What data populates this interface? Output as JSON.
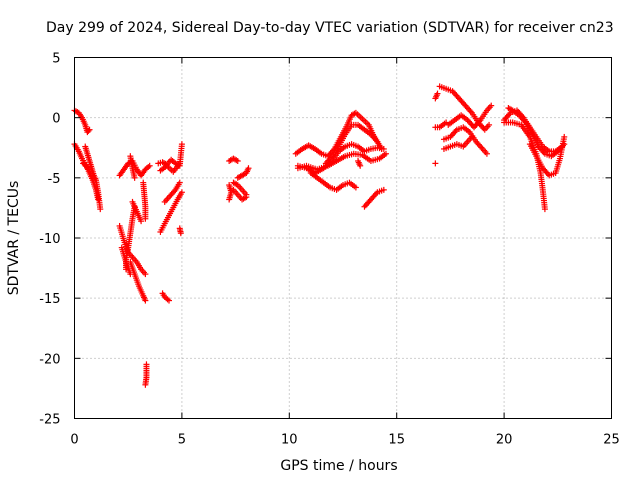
{
  "chart_data": {
    "type": "scatter",
    "title": "Day 299 of 2024, Sidereal Day-to-day VTEC variation (SDTVAR) for receiver cn23",
    "xlabel": "GPS time / hours",
    "ylabel": "SDTVAR / TECUs",
    "xlim": [
      0,
      25
    ],
    "ylim": [
      -25,
      5
    ],
    "xticks": [
      0,
      5,
      10,
      15,
      20,
      25
    ],
    "yticks": [
      -25,
      -20,
      -15,
      -10,
      -5,
      0,
      5
    ],
    "grid": true,
    "marker": "+",
    "color": "#ff0000",
    "series": [
      {
        "name": "SDTVAR",
        "segments": [
          [
            [
              0.0,
              0.6
            ],
            [
              0.2,
              0.4
            ],
            [
              0.35,
              0.0
            ],
            [
              0.5,
              -0.6
            ],
            [
              0.6,
              -1.2
            ],
            [
              0.7,
              -1.0
            ]
          ],
          [
            [
              0.0,
              -2.2
            ],
            [
              0.2,
              -2.8
            ],
            [
              0.35,
              -3.4
            ],
            [
              0.5,
              -3.9
            ],
            [
              0.6,
              -4.2
            ]
          ],
          [
            [
              0.5,
              -2.4
            ],
            [
              0.6,
              -3.0
            ],
            [
              0.7,
              -3.6
            ],
            [
              0.8,
              -4.2
            ],
            [
              0.9,
              -4.8
            ],
            [
              1.0,
              -5.2
            ],
            [
              1.1,
              -6.2
            ],
            [
              1.2,
              -7.6
            ]
          ],
          [
            [
              0.4,
              -3.8
            ],
            [
              0.55,
              -4.0
            ],
            [
              0.7,
              -4.6
            ],
            [
              0.85,
              -5.2
            ],
            [
              1.0,
              -6.0
            ],
            [
              1.1,
              -6.8
            ]
          ],
          [
            [
              2.1,
              -4.8
            ],
            [
              2.3,
              -4.3
            ],
            [
              2.5,
              -3.8
            ],
            [
              2.7,
              -3.6
            ],
            [
              2.9,
              -4.3
            ],
            [
              3.1,
              -4.8
            ],
            [
              3.3,
              -4.3
            ],
            [
              3.5,
              -4.0
            ]
          ],
          [
            [
              2.6,
              -3.2
            ],
            [
              2.7,
              -4.2
            ],
            [
              2.8,
              -5.0
            ]
          ],
          [
            [
              2.7,
              -7.0
            ],
            [
              2.9,
              -7.8
            ],
            [
              3.1,
              -8.6
            ]
          ],
          [
            [
              3.2,
              -5.4
            ],
            [
              3.25,
              -6.4
            ],
            [
              3.3,
              -7.4
            ],
            [
              3.3,
              -8.4
            ]
          ],
          [
            [
              2.8,
              -7.4
            ],
            [
              2.7,
              -8.4
            ],
            [
              2.6,
              -9.6
            ],
            [
              2.5,
              -10.8
            ],
            [
              2.4,
              -11.8
            ],
            [
              2.4,
              -12.6
            ]
          ],
          [
            [
              2.1,
              -9.0
            ],
            [
              2.3,
              -10.2
            ],
            [
              2.5,
              -11.2
            ],
            [
              2.7,
              -11.6
            ],
            [
              2.9,
              -12.0
            ],
            [
              3.1,
              -12.6
            ],
            [
              3.3,
              -13.0
            ]
          ],
          [
            [
              2.6,
              -12.0
            ],
            [
              2.8,
              -13.0
            ],
            [
              3.0,
              -14.0
            ],
            [
              3.2,
              -14.8
            ],
            [
              3.3,
              -15.2
            ]
          ],
          [
            [
              2.2,
              -10.8
            ],
            [
              2.4,
              -12.0
            ],
            [
              2.6,
              -13.0
            ]
          ],
          [
            [
              3.35,
              -20.5
            ],
            [
              3.35,
              -21.0
            ],
            [
              3.35,
              -21.6
            ],
            [
              3.3,
              -22.2
            ]
          ],
          [
            [
              3.9,
              -3.8
            ],
            [
              4.1,
              -3.7
            ],
            [
              4.3,
              -3.9
            ],
            [
              4.5,
              -3.5
            ],
            [
              4.7,
              -3.8
            ],
            [
              4.9,
              -4.0
            ],
            [
              5.0,
              -2.2
            ]
          ],
          [
            [
              4.0,
              -4.4
            ],
            [
              4.3,
              -4.0
            ],
            [
              4.6,
              -4.5
            ],
            [
              4.9,
              -3.8
            ]
          ],
          [
            [
              4.2,
              -7.0
            ],
            [
              4.4,
              -6.6
            ],
            [
              4.7,
              -6.0
            ],
            [
              4.9,
              -5.4
            ]
          ],
          [
            [
              4.0,
              -9.5
            ],
            [
              4.2,
              -8.8
            ],
            [
              4.5,
              -7.8
            ],
            [
              4.8,
              -6.8
            ],
            [
              5.0,
              -6.2
            ]
          ],
          [
            [
              4.9,
              -9.2
            ],
            [
              4.95,
              -9.6
            ]
          ],
          [
            [
              4.1,
              -14.6
            ],
            [
              4.2,
              -14.9
            ],
            [
              4.4,
              -15.2
            ]
          ],
          [
            [
              7.2,
              -3.6
            ],
            [
              7.4,
              -3.4
            ],
            [
              7.6,
              -3.6
            ]
          ],
          [
            [
              7.2,
              -5.6
            ],
            [
              7.3,
              -6.2
            ],
            [
              7.2,
              -6.8
            ]
          ],
          [
            [
              7.4,
              -5.4
            ],
            [
              7.6,
              -5.6
            ],
            [
              7.8,
              -6.0
            ],
            [
              8.0,
              -6.4
            ]
          ],
          [
            [
              7.4,
              -6.0
            ],
            [
              7.6,
              -6.4
            ],
            [
              7.8,
              -6.8
            ],
            [
              8.0,
              -6.6
            ]
          ],
          [
            [
              7.6,
              -5.0
            ],
            [
              7.8,
              -4.8
            ],
            [
              8.0,
              -4.6
            ],
            [
              8.1,
              -4.2
            ]
          ],
          [
            [
              10.3,
              -3.0
            ],
            [
              10.6,
              -2.6
            ],
            [
              10.9,
              -2.3
            ],
            [
              11.2,
              -2.6
            ],
            [
              11.5,
              -3.0
            ],
            [
              11.8,
              -3.2
            ],
            [
              12.1,
              -2.6
            ],
            [
              12.4,
              -1.6
            ],
            [
              12.7,
              -0.6
            ],
            [
              12.9,
              0.2
            ],
            [
              13.1,
              0.4
            ],
            [
              13.4,
              -0.1
            ],
            [
              13.7,
              -0.6
            ],
            [
              13.9,
              -1.4
            ],
            [
              14.1,
              -2.0
            ],
            [
              14.3,
              -2.6
            ]
          ],
          [
            [
              10.4,
              -4.0
            ],
            [
              10.8,
              -4.2
            ],
            [
              11.2,
              -4.6
            ],
            [
              11.6,
              -4.2
            ],
            [
              12.0,
              -3.6
            ],
            [
              12.3,
              -2.8
            ],
            [
              12.6,
              -2.4
            ],
            [
              12.9,
              -2.2
            ],
            [
              13.2,
              -2.4
            ],
            [
              13.5,
              -2.8
            ],
            [
              13.8,
              -2.6
            ],
            [
              14.1,
              -2.5
            ],
            [
              14.4,
              -2.6
            ]
          ],
          [
            [
              10.4,
              -4.2
            ],
            [
              10.8,
              -4.0
            ],
            [
              11.3,
              -4.3
            ],
            [
              11.8,
              -4.0
            ],
            [
              12.2,
              -3.6
            ],
            [
              12.6,
              -3.2
            ],
            [
              13.0,
              -3.0
            ],
            [
              13.4,
              -3.1
            ],
            [
              13.8,
              -3.6
            ],
            [
              14.2,
              -3.4
            ],
            [
              14.5,
              -3.0
            ]
          ],
          [
            [
              11.0,
              -4.6
            ],
            [
              11.3,
              -5.0
            ],
            [
              11.6,
              -5.4
            ],
            [
              11.9,
              -5.8
            ],
            [
              12.2,
              -6.0
            ],
            [
              12.5,
              -5.6
            ],
            [
              12.8,
              -5.4
            ],
            [
              13.1,
              -5.8
            ]
          ],
          [
            [
              11.7,
              -3.8
            ],
            [
              12.0,
              -3.2
            ],
            [
              12.3,
              -2.4
            ],
            [
              12.6,
              -1.4
            ],
            [
              12.9,
              -0.6
            ],
            [
              13.2,
              -0.6
            ],
            [
              13.5,
              -1.0
            ],
            [
              13.8,
              -1.4
            ],
            [
              14.1,
              -2.0
            ]
          ],
          [
            [
              13.5,
              -7.4
            ],
            [
              13.8,
              -6.8
            ],
            [
              14.1,
              -6.2
            ],
            [
              14.4,
              -6.0
            ]
          ],
          [
            [
              13.2,
              -3.6
            ],
            [
              13.3,
              -4.0
            ]
          ],
          [
            [
              16.8,
              1.6
            ],
            [
              16.9,
              2.0
            ]
          ],
          [
            [
              17.0,
              2.6
            ],
            [
              17.3,
              2.4
            ],
            [
              17.6,
              2.2
            ],
            [
              17.9,
              1.6
            ],
            [
              18.2,
              1.0
            ],
            [
              18.5,
              0.4
            ],
            [
              18.8,
              -0.4
            ],
            [
              19.1,
              -1.0
            ],
            [
              19.3,
              -0.6
            ]
          ],
          [
            [
              17.4,
              -0.6
            ],
            [
              17.7,
              -0.2
            ],
            [
              18.0,
              0.2
            ],
            [
              18.3,
              -0.2
            ],
            [
              18.6,
              -0.8
            ],
            [
              18.9,
              -0.2
            ],
            [
              19.2,
              0.6
            ],
            [
              19.4,
              1.0
            ]
          ],
          [
            [
              17.2,
              -1.8
            ],
            [
              17.5,
              -1.6
            ],
            [
              17.8,
              -1.0
            ],
            [
              18.1,
              -0.8
            ],
            [
              18.4,
              -1.2
            ],
            [
              18.7,
              -2.0
            ],
            [
              19.0,
              -2.6
            ],
            [
              19.2,
              -3.0
            ]
          ],
          [
            [
              17.2,
              -2.6
            ],
            [
              17.5,
              -2.4
            ],
            [
              17.8,
              -2.2
            ],
            [
              18.1,
              -2.4
            ],
            [
              18.3,
              -2.0
            ],
            [
              18.5,
              -1.6
            ]
          ],
          [
            [
              16.8,
              -0.8
            ],
            [
              17.0,
              -0.8
            ],
            [
              17.3,
              -0.4
            ]
          ],
          [
            [
              16.8,
              -3.8
            ]
          ],
          [
            [
              20.0,
              -0.2
            ],
            [
              20.3,
              0.4
            ],
            [
              20.6,
              0.6
            ],
            [
              20.9,
              0.0
            ],
            [
              21.2,
              -0.8
            ],
            [
              21.5,
              -1.6
            ],
            [
              21.8,
              -2.4
            ],
            [
              22.1,
              -2.8
            ],
            [
              22.4,
              -2.8
            ],
            [
              22.7,
              -2.4
            ]
          ],
          [
            [
              20.2,
              0.8
            ],
            [
              20.4,
              0.6
            ],
            [
              20.7,
              0.2
            ],
            [
              21.0,
              -0.4
            ],
            [
              21.3,
              -1.4
            ],
            [
              21.6,
              -2.4
            ],
            [
              21.9,
              -3.0
            ],
            [
              22.2,
              -3.2
            ],
            [
              22.5,
              -2.8
            ],
            [
              22.8,
              -2.2
            ]
          ],
          [
            [
              20.0,
              -0.4
            ],
            [
              20.4,
              -0.4
            ],
            [
              20.8,
              -0.6
            ],
            [
              21.2,
              -1.6
            ],
            [
              21.5,
              -3.0
            ],
            [
              21.7,
              -4.6
            ],
            [
              21.8,
              -6.0
            ],
            [
              21.9,
              -7.6
            ]
          ],
          [
            [
              21.2,
              -2.2
            ],
            [
              21.5,
              -3.2
            ],
            [
              21.8,
              -4.2
            ],
            [
              22.1,
              -4.8
            ],
            [
              22.4,
              -4.6
            ],
            [
              22.6,
              -3.4
            ],
            [
              22.8,
              -1.6
            ]
          ]
        ]
      }
    ]
  }
}
